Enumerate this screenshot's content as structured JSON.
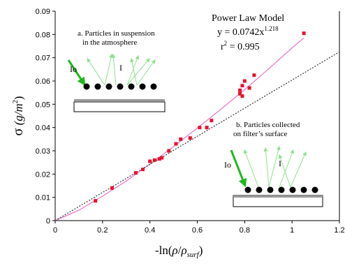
{
  "chart_data": {
    "type": "scatter",
    "xlabel": "-ln(ρ/ρsurf)",
    "xlabel_parts": {
      "prefix": "-ln(",
      "rho": "ρ",
      "slash": "/",
      "rho2": "ρ",
      "sub": "surf",
      "suffix": ")"
    },
    "ylabel": "σ (g/m²)",
    "ylabel_parts": {
      "sigma": "σ",
      "unit": " (g/m",
      "sup": "2",
      "close": ")"
    },
    "xlim": [
      0,
      1.2
    ],
    "ylim": [
      0,
      0.09
    ],
    "xticks": [
      "0",
      "0.2",
      "0.4",
      "0.6",
      "0.8",
      "1",
      "1.2"
    ],
    "yticks": [
      "0",
      "0.01",
      "0.02",
      "0.03",
      "0.04",
      "0.05",
      "0.06",
      "0.07",
      "0.08",
      "0.09"
    ],
    "grid": false,
    "series": [
      {
        "type": "scatter",
        "color": "#e8112d",
        "points": [
          {
            "x": 0.17,
            "y": 0.0085
          },
          {
            "x": 0.24,
            "y": 0.014
          },
          {
            "x": 0.34,
            "y": 0.0205
          },
          {
            "x": 0.37,
            "y": 0.022
          },
          {
            "x": 0.4,
            "y": 0.0255
          },
          {
            "x": 0.42,
            "y": 0.026
          },
          {
            "x": 0.44,
            "y": 0.0265
          },
          {
            "x": 0.45,
            "y": 0.027
          },
          {
            "x": 0.48,
            "y": 0.03
          },
          {
            "x": 0.51,
            "y": 0.033
          },
          {
            "x": 0.53,
            "y": 0.035
          },
          {
            "x": 0.57,
            "y": 0.0355
          },
          {
            "x": 0.61,
            "y": 0.04
          },
          {
            "x": 0.64,
            "y": 0.04
          },
          {
            "x": 0.66,
            "y": 0.043
          },
          {
            "x": 0.78,
            "y": 0.0545
          },
          {
            "x": 0.78,
            "y": 0.056
          },
          {
            "x": 0.79,
            "y": 0.058
          },
          {
            "x": 0.79,
            "y": 0.0535
          },
          {
            "x": 0.8,
            "y": 0.06
          },
          {
            "x": 0.82,
            "y": 0.057
          },
          {
            "x": 0.84,
            "y": 0.0625
          },
          {
            "x": 1.05,
            "y": 0.0805
          }
        ]
      },
      {
        "type": "line",
        "style": "solid",
        "color": "#e87ccf",
        "x": [
          0.0,
          0.1,
          0.2,
          0.3,
          0.4,
          0.5,
          0.6,
          0.7,
          0.8,
          0.9,
          1.0,
          1.05
        ],
        "y": [
          0.0,
          0.0045,
          0.0105,
          0.017,
          0.0243,
          0.0318,
          0.0398,
          0.0479,
          0.0563,
          0.0651,
          0.0742,
          0.0785
        ]
      },
      {
        "type": "line",
        "style": "dotted",
        "color": "#333333",
        "x": [
          0.0,
          1.2
        ],
        "y": [
          0.0,
          0.0725
        ]
      }
    ],
    "annotations": {
      "model_title": "Power Law Model",
      "equation": "y = 0.0742x",
      "exponent": "1.218",
      "r2_label": "r",
      "r2_sup": "2",
      "r2_value": " = 0.995",
      "label_a_line1": "a. Particles in suspension",
      "label_a_line2": "in  the atmosphere",
      "label_b_line1": "b. Particles collected",
      "label_b_line2": "on filter’s surface",
      "io_label": "Io",
      "i_label": "I"
    }
  },
  "colors": {
    "marker": "#e8112d",
    "fit_line": "#e87ccf",
    "dotted_line": "#333333",
    "arrow_incident": "#1eb81e",
    "arrow_scatter": "#8fe08f"
  }
}
